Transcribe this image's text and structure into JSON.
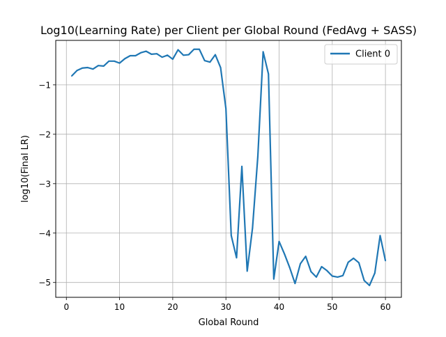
{
  "chart_data": {
    "type": "line",
    "title": "Log10(Learning Rate) per Client per Global Round (FedAvg + SASS)",
    "xlabel": "Global Round",
    "ylabel": "log10(Final LR)",
    "xlim": [
      -2,
      63
    ],
    "ylim": [
      -5.3,
      -0.1
    ],
    "xticks": [
      0,
      10,
      20,
      30,
      40,
      50,
      60
    ],
    "xtick_labels": [
      "0",
      "10",
      "20",
      "30",
      "40",
      "50",
      "60"
    ],
    "yticks": [
      -1,
      -2,
      -3,
      -4,
      -5
    ],
    "ytick_labels": [
      "−1",
      "−2",
      "−3",
      "−4",
      "−5"
    ],
    "grid": true,
    "legend_position": "upper right",
    "series": [
      {
        "name": "Client 0",
        "color": "#1f77b4",
        "x": [
          1,
          2,
          3,
          4,
          5,
          6,
          7,
          8,
          9,
          10,
          11,
          12,
          13,
          14,
          15,
          16,
          17,
          18,
          19,
          20,
          21,
          22,
          23,
          24,
          25,
          26,
          27,
          28,
          29,
          30,
          31,
          32,
          33,
          34,
          35,
          36,
          37,
          38,
          39,
          40,
          41,
          42,
          43,
          44,
          45,
          46,
          47,
          48,
          49,
          50,
          51,
          52,
          53,
          54,
          55,
          56,
          57,
          58,
          59,
          60
        ],
        "y": [
          -0.82,
          -0.71,
          -0.66,
          -0.65,
          -0.68,
          -0.61,
          -0.62,
          -0.52,
          -0.52,
          -0.56,
          -0.47,
          -0.41,
          -0.41,
          -0.35,
          -0.32,
          -0.38,
          -0.37,
          -0.44,
          -0.4,
          -0.48,
          -0.29,
          -0.4,
          -0.39,
          -0.28,
          -0.28,
          -0.51,
          -0.54,
          -0.39,
          -0.65,
          -1.48,
          -4.05,
          -4.5,
          -2.65,
          -4.77,
          -3.9,
          -2.45,
          -0.33,
          -0.78,
          -4.93,
          -4.17,
          -4.42,
          -4.7,
          -5.02,
          -4.62,
          -4.47,
          -4.78,
          -4.89,
          -4.68,
          -4.76,
          -4.87,
          -4.89,
          -4.86,
          -4.59,
          -4.51,
          -4.6,
          -4.96,
          -5.06,
          -4.81,
          -4.05,
          -4.56
        ]
      }
    ]
  },
  "colors": {
    "axes": "#000000",
    "grid": "#b0b0b0",
    "legend_border": "#cccccc"
  }
}
